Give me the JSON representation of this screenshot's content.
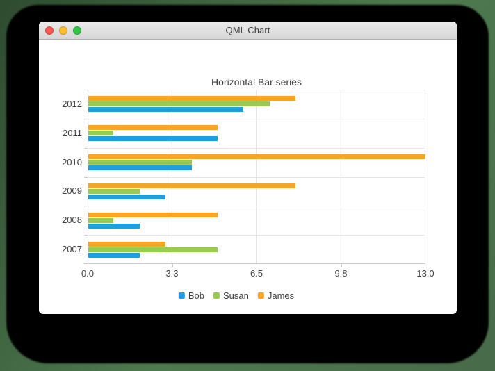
{
  "window": {
    "title": "QML Chart",
    "controls": {
      "close_color": "#fc5b54",
      "minimize_color": "#fdbe33",
      "zoom_color": "#33c748"
    }
  },
  "chart_data": {
    "type": "bar",
    "orientation": "horizontal",
    "title": "Horizontal Bar series",
    "categories": [
      "2012",
      "2011",
      "2010",
      "2009",
      "2008",
      "2007"
    ],
    "series": [
      {
        "name": "James",
        "color": "#f6a625",
        "values": [
          8,
          5,
          13,
          8,
          5,
          3
        ]
      },
      {
        "name": "Susan",
        "color": "#99ca53",
        "values": [
          7,
          1,
          4,
          2,
          1,
          5
        ]
      },
      {
        "name": "Bob",
        "color": "#209fdf",
        "values": [
          6,
          5,
          4,
          3,
          2,
          2
        ]
      }
    ],
    "xlim": [
      0,
      13
    ],
    "x_tick_labels": [
      "0.0",
      "3.3",
      "6.5",
      "9.8",
      "13.0"
    ],
    "grid": true,
    "legend": {
      "position": "bottom",
      "items": [
        {
          "label": "Bob",
          "color": "#209fdf"
        },
        {
          "label": "Susan",
          "color": "#99ca53"
        },
        {
          "label": "James",
          "color": "#f6a625"
        }
      ]
    }
  }
}
